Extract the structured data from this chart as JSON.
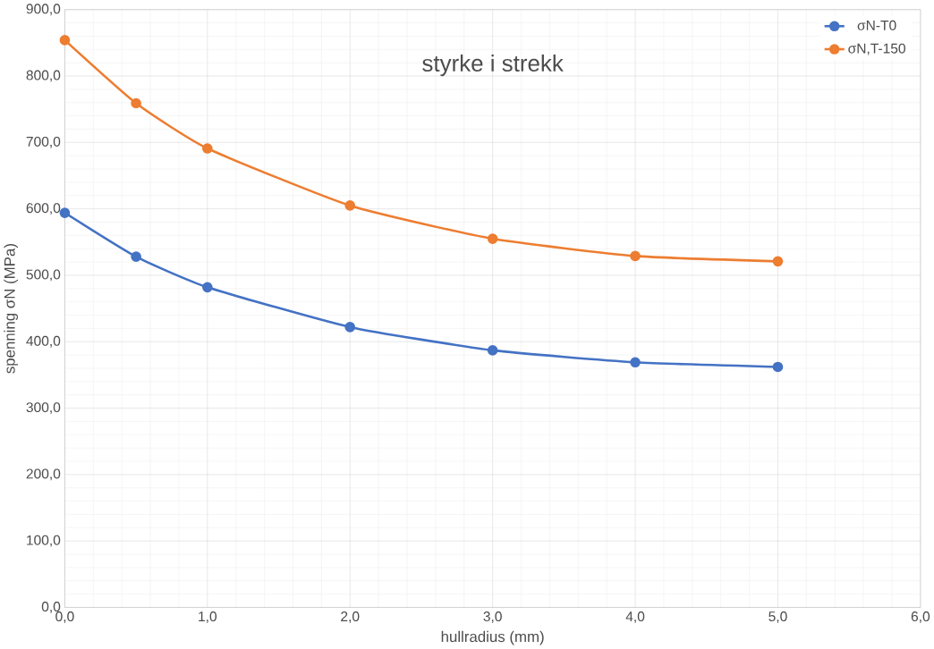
{
  "chart_data": {
    "type": "line",
    "title": "styrke i strekk",
    "xlabel": "hullradius (mm)",
    "ylabel": "spenning σN (MPa)",
    "x": [
      0,
      0.5,
      1,
      2,
      3,
      4,
      5
    ],
    "series": [
      {
        "name": "σN-T0",
        "color": "#4472c4",
        "values": [
          594,
          528,
          482,
          422,
          387,
          369,
          362
        ]
      },
      {
        "name": "σN,T-150",
        "color": "#ed7d31",
        "values": [
          854,
          759,
          691,
          605,
          555,
          529,
          521
        ]
      }
    ],
    "xlim": [
      0,
      6
    ],
    "ylim": [
      0,
      900
    ],
    "xticks": [
      {
        "value": 0,
        "label": "0,0"
      },
      {
        "value": 1,
        "label": "1,0"
      },
      {
        "value": 2,
        "label": "2,0"
      },
      {
        "value": 3,
        "label": "3,0"
      },
      {
        "value": 4,
        "label": "4,0"
      },
      {
        "value": 5,
        "label": "5,0"
      },
      {
        "value": 6,
        "label": "6,0"
      }
    ],
    "yticks": [
      {
        "value": 0,
        "label": "0,0"
      },
      {
        "value": 100,
        "label": "100,0"
      },
      {
        "value": 200,
        "label": "200,0"
      },
      {
        "value": 300,
        "label": "300,0"
      },
      {
        "value": 400,
        "label": "400,0"
      },
      {
        "value": 500,
        "label": "500,0"
      },
      {
        "value": 600,
        "label": "600,0"
      },
      {
        "value": 700,
        "label": "700,0"
      },
      {
        "value": 800,
        "label": "800,0"
      },
      {
        "value": 900,
        "label": "900,0"
      }
    ],
    "grid": true,
    "legend": "top right",
    "marker": "circle"
  }
}
